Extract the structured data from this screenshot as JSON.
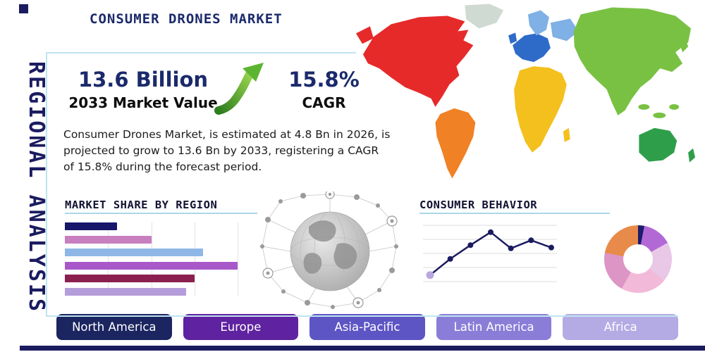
{
  "side_label": "REGIONAL ANALYSIS",
  "title": "CONSUMER DRONES MARKET",
  "stats": {
    "market_value": "13.6 Billion",
    "market_value_label": "2033 Market Value",
    "cagr": "15.8%",
    "cagr_label": "CAGR",
    "description": "Consumer Drones Market, is estimated at 4.8 Bn in 2026, is projected to grow to 13.6 Bn by 2033, registering a CAGR of 15.8% during the forecast period."
  },
  "colors": {
    "navy": "#1b1b60",
    "accent_line": "#a9d9ea",
    "arrow_green_dark": "#2e7d1f",
    "arrow_green_light": "#9ad64f"
  },
  "map": {
    "colors": {
      "north_america": "#e62a2a",
      "greenland": "#cfdad2",
      "south_america": "#f08125",
      "europe": "#2e6bc8",
      "northern_europe": "#7fb0e6",
      "africa": "#f4c01e",
      "asia": "#79c143",
      "australia": "#2f9e4b"
    }
  },
  "chart_data": [
    {
      "type": "bar",
      "title": "MARKET SHARE BY REGION",
      "orientation": "horizontal",
      "categories": [
        "",
        "",
        "",
        "",
        "",
        ""
      ],
      "values": [
        30,
        50,
        80,
        100,
        75,
        70
      ],
      "colors": [
        "#16166b",
        "#c77fc0",
        "#8fb7e6",
        "#a958c9",
        "#8b2050",
        "#b49dda"
      ],
      "xlabel": "",
      "ylabel": "",
      "grid": true,
      "legend": false
    },
    {
      "type": "line",
      "title": "CONSUMER BEHAVIOR",
      "x": [
        1,
        2,
        3,
        4,
        5,
        6,
        7
      ],
      "values": [
        1.5,
        3.5,
        5.2,
        6.8,
        4.8,
        5.8,
        4.9
      ],
      "ylim": [
        0,
        8
      ],
      "grid": true,
      "line_color": "#1b1b60",
      "first_point_color": "#b9a7e0"
    },
    {
      "type": "pie",
      "donut": true,
      "values": [
        3,
        14,
        19,
        22,
        20,
        22
      ],
      "colors": [
        "#1c1c6e",
        "#b269d6",
        "#e9c7e6",
        "#f3b9d9",
        "#dc95c5",
        "#e88b4a"
      ]
    }
  ],
  "region_buttons": [
    {
      "label": "North America",
      "color": "#1b2560"
    },
    {
      "label": "Europe",
      "color": "#5f22a0"
    },
    {
      "label": "Asia-Pacific",
      "color": "#5d55c4"
    },
    {
      "label": "Latin America",
      "color": "#8a7dd8"
    },
    {
      "label": "Africa",
      "color": "#b4abe4"
    }
  ]
}
